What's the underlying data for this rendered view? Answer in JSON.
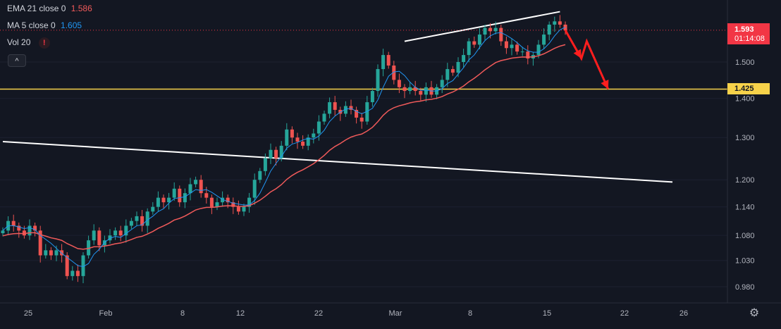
{
  "legend": {
    "ema_label": "EMA 21 close 0",
    "ema_value": "1.586",
    "ma_label": "MA 5 close 0",
    "ma_value": "1.605",
    "vol_label": "Vol 20",
    "alert_glyph": "!",
    "collapse_glyph": "^"
  },
  "price_axis": {
    "ticks": [
      "1.500",
      "1.400",
      "1.300",
      "1.200",
      "1.140",
      "1.080",
      "1.030",
      "0.980"
    ],
    "last_price": "1.593",
    "countdown": "01:14:08",
    "level_tag": "1.425"
  },
  "time_axis": {
    "ticks": [
      "25",
      "Feb",
      "8",
      "12",
      "22",
      "Mar",
      "8",
      "15",
      "22",
      "26"
    ]
  },
  "colors": {
    "background": "#131722",
    "up_candle": "#26a69a",
    "down_candle": "#ef5350",
    "ema_line": "#f05a5a",
    "ma_line": "#2196f3",
    "level_line": "#f7d24a",
    "trendline": "#ffffff",
    "arrow": "#ff1e1e"
  },
  "icons": {
    "settings": "gear-icon"
  },
  "chart_data": {
    "type": "line",
    "title": "",
    "scale": "log",
    "ylim": [
      0.95,
      1.65
    ],
    "grid": false,
    "x_unit": "daily candles, Jan 22 to Mar 17",
    "series": [
      {
        "name": "Price",
        "style": "candlestick",
        "values": [
          1.09,
          1.11,
          1.1,
          1.09,
          1.08,
          1.1,
          1.09,
          1.04,
          1.05,
          1.04,
          1.05,
          1.04,
          1.0,
          1.01,
          1.0,
          1.04,
          1.07,
          1.09,
          1.06,
          1.07,
          1.08,
          1.09,
          1.08,
          1.1,
          1.11,
          1.12,
          1.1,
          1.13,
          1.14,
          1.16,
          1.15,
          1.16,
          1.18,
          1.15,
          1.17,
          1.19,
          1.2,
          1.17,
          1.16,
          1.14,
          1.15,
          1.16,
          1.15,
          1.14,
          1.13,
          1.14,
          1.16,
          1.2,
          1.22,
          1.25,
          1.27,
          1.25,
          1.28,
          1.32,
          1.3,
          1.29,
          1.28,
          1.3,
          1.31,
          1.34,
          1.36,
          1.39,
          1.37,
          1.36,
          1.38,
          1.37,
          1.35,
          1.34,
          1.39,
          1.42,
          1.48,
          1.52,
          1.49,
          1.45,
          1.43,
          1.42,
          1.43,
          1.42,
          1.41,
          1.43,
          1.41,
          1.43,
          1.45,
          1.48,
          1.47,
          1.5,
          1.52,
          1.56,
          1.55,
          1.58,
          1.6,
          1.59,
          1.6,
          1.56,
          1.54,
          1.55,
          1.53,
          1.53,
          1.51,
          1.52,
          1.55,
          1.58,
          1.61,
          1.62,
          1.61,
          1.593
        ]
      },
      {
        "name": "EMA 21",
        "style": "line",
        "color": "#f05a5a"
      },
      {
        "name": "MA 5",
        "style": "line",
        "color": "#2196f3"
      },
      {
        "name": "Level",
        "style": "hline",
        "values": [
          1.425
        ]
      }
    ],
    "annotations": [
      {
        "type": "trendline",
        "from": [
          0,
          1.29
        ],
        "to": [
          125,
          1.195
        ]
      },
      {
        "type": "trendline",
        "from": [
          75,
          1.56
        ],
        "to": [
          104,
          1.65
        ]
      },
      {
        "type": "arrow",
        "points": [
          [
            105,
            1.593
          ],
          [
            108,
            1.51
          ],
          [
            109,
            1.56
          ],
          [
            113,
            1.425
          ]
        ]
      }
    ]
  }
}
